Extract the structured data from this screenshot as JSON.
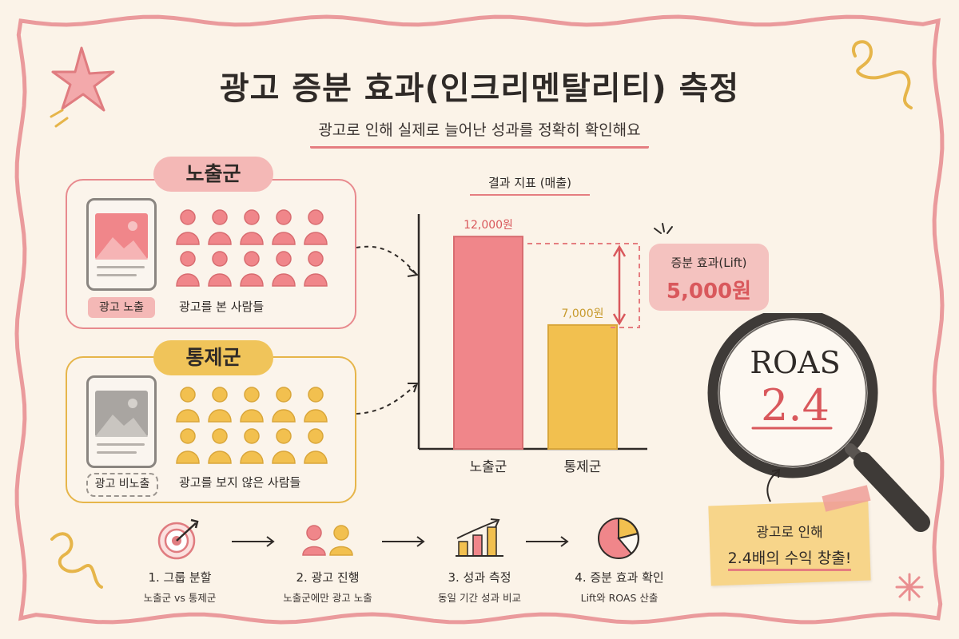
{
  "title": "광고 증분 효과(인크리멘탈리티) 측정",
  "subtitle": "광고로 인해 실제로 늘어난 성과를 정확히 확인해요",
  "groups": {
    "exposed": {
      "name": "노출군",
      "tag": "광고 노출",
      "caption": "광고를 본 사람들",
      "people": 10
    },
    "control": {
      "name": "통제군",
      "tag": "광고 비노출",
      "caption": "광고를 보지 않은 사람들",
      "people": 10
    }
  },
  "chart_data": {
    "type": "bar",
    "title": "결과 지표 (매출)",
    "categories": [
      "노출군",
      "통제군"
    ],
    "values": [
      12000,
      7000
    ],
    "value_labels": [
      "12,000원",
      "7,000원"
    ],
    "colors": [
      "#f0868a",
      "#f2c04f"
    ],
    "ylim": [
      0,
      13000
    ],
    "grid": false
  },
  "lift": {
    "label": "증분 효과(Lift)",
    "value": "5,000원"
  },
  "roas": {
    "label": "ROAS",
    "value": "2.4"
  },
  "note": {
    "line1": "광고로 인해",
    "line2": "2.4배의 수익 창출!"
  },
  "steps": [
    {
      "title": "1. 그룹 분할",
      "desc": "노출군 vs 통제군",
      "icon": "target-icon"
    },
    {
      "title": "2. 광고 진행",
      "desc": "노출군에만 광고 노출",
      "icon": "people-icon"
    },
    {
      "title": "3. 성과 측정",
      "desc": "동일 기간 성과 비교",
      "icon": "growth-chart-icon"
    },
    {
      "title": "4. 증분 효과 확인",
      "desc": "Lift와 ROAS 산출",
      "icon": "pie-chart-icon"
    }
  ],
  "colors": {
    "pink": "#f0868a",
    "yellow": "#f2c04f",
    "accent": "#d9585c",
    "background": "#fbf3e8"
  }
}
